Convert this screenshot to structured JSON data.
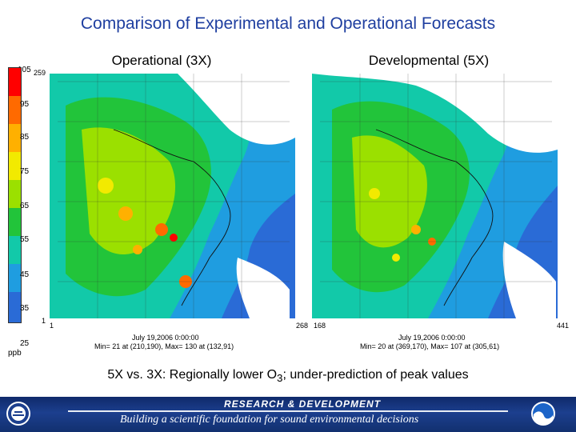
{
  "title": "Comparison of Experimental and Operational Forecasts",
  "panels": [
    {
      "title": "Operational (3X)",
      "y_top": "259",
      "y_bottom": "1",
      "x_left": "1",
      "x_right": "268",
      "date": "July 19,2006 0:00:00",
      "minmax": "Min= 21 at (210,190), Max= 130 at (132,91)"
    },
    {
      "title": "Developmental (5X)",
      "y_top": "",
      "y_bottom": "",
      "x_left": "168",
      "x_right": "441",
      "date": "July 19,2006 0:00:00",
      "minmax": "Min= 20 at (369,170), Max= 107 at (305,61)"
    }
  ],
  "legend": {
    "unit": "ppb",
    "ticks": [
      "105",
      "95",
      "85",
      "75",
      "65",
      "55",
      "45",
      "35",
      "25"
    ],
    "colors": [
      "#ff0000",
      "#ff6a00",
      "#ffb000",
      "#f2ea00",
      "#9be000",
      "#22c43a",
      "#12c9a9",
      "#1f9de0",
      "#2a6bd6"
    ]
  },
  "caption": {
    "prefix": "5X vs. 3X: Regionally lower O",
    "subscript": "3",
    "suffix": "; under-prediction of peak values"
  },
  "footer": {
    "top": "RESEARCH & DEVELOPMENT",
    "bottom": "Building a scientific foundation for sound environmental decisions"
  },
  "colors": {
    "title": "#1f3fa0",
    "footer_bg": "#1c3f8e",
    "ocean": "#2a6bd6"
  },
  "icons": [
    "epa-seal-icon",
    "noaa-logo-icon"
  ]
}
